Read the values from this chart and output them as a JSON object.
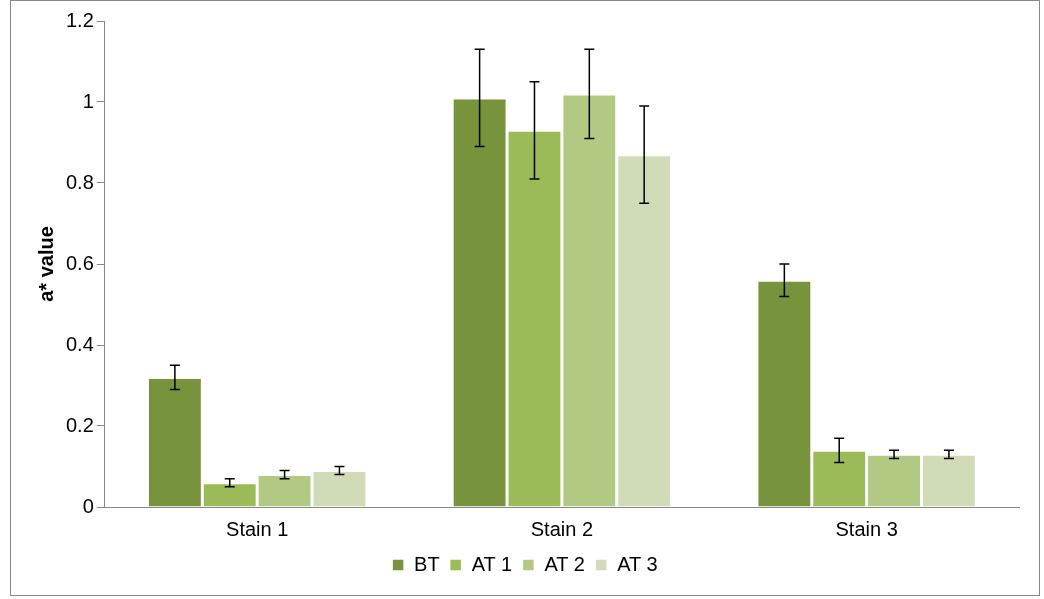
{
  "chart_data": {
    "type": "bar",
    "ylabel": "a* value",
    "categories": [
      "Stain 1",
      "Stain 2",
      "Stain 3"
    ],
    "ylim": [
      0,
      1.2
    ],
    "yticks": [
      0,
      0.2,
      0.4,
      0.6,
      0.8,
      1,
      1.2
    ],
    "grid": false,
    "legend": "bottom",
    "series": [
      {
        "name": "BT",
        "color": "#77933c",
        "values": [
          0.32,
          1.01,
          0.56
        ],
        "errors": [
          0.03,
          0.12,
          0.04
        ]
      },
      {
        "name": "AT 1",
        "color": "#9bbb59",
        "values": [
          0.06,
          0.93,
          0.14
        ],
        "errors": [
          0.01,
          0.12,
          0.03
        ]
      },
      {
        "name": "AT 2",
        "color": "#b1c983",
        "values": [
          0.08,
          1.02,
          0.13
        ],
        "errors": [
          0.01,
          0.11,
          0.01
        ]
      },
      {
        "name": "AT 3",
        "color": "#d0dcb8",
        "values": [
          0.09,
          0.87,
          0.13
        ],
        "errors": [
          0.01,
          0.12,
          0.01
        ]
      }
    ]
  }
}
